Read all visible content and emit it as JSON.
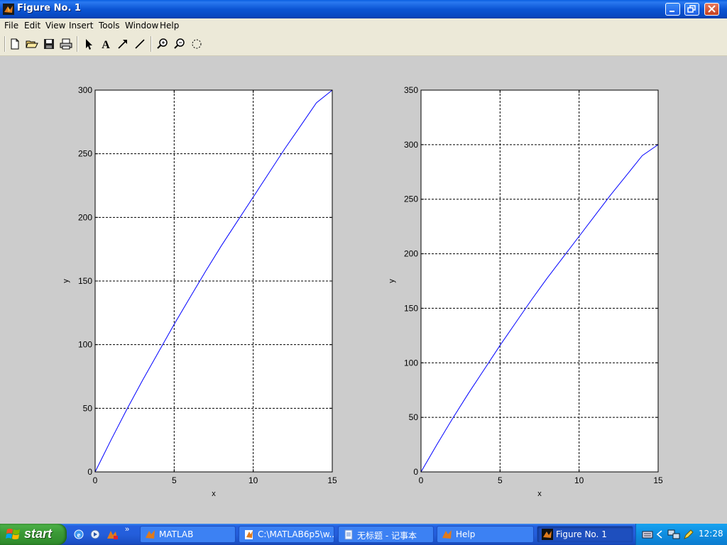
{
  "window": {
    "title": "Figure No. 1",
    "buttons": [
      "minimize-icon",
      "restore-icon",
      "close-icon"
    ]
  },
  "menu": [
    "File",
    "Edit",
    "View",
    "Insert",
    "Tools",
    "Window",
    "Help"
  ],
  "toolbar": [
    "new-file-icon",
    "open-folder-icon",
    "save-icon",
    "print-icon",
    "select-arrow-icon",
    "insert-text-icon",
    "insert-arrow-icon",
    "insert-line-icon",
    "zoom-in-icon",
    "zoom-out-icon",
    "rotate-3d-icon"
  ],
  "chart_data": [
    {
      "type": "line",
      "xlabel": "x",
      "ylabel": "y",
      "xlim": [
        0,
        15
      ],
      "ylim": [
        0,
        300
      ],
      "xticks": [
        "0",
        "5",
        "10",
        "15"
      ],
      "yticks": [
        "0",
        "50",
        "100",
        "150",
        "200",
        "250",
        "300"
      ],
      "grid": true,
      "line_color": "#0000ff",
      "series": [
        {
          "x": [
            0,
            1,
            2,
            3,
            4,
            5,
            6,
            7,
            8,
            9,
            10,
            11,
            12,
            13,
            14,
            15
          ],
          "values": [
            0,
            25,
            49,
            72,
            94,
            116,
            137,
            158,
            178,
            197,
            216,
            235,
            254,
            272,
            290,
            300
          ]
        }
      ]
    },
    {
      "type": "line",
      "xlabel": "x",
      "ylabel": "y",
      "xlim": [
        0,
        15
      ],
      "ylim": [
        0,
        350
      ],
      "xticks": [
        "0",
        "5",
        "10",
        "15"
      ],
      "yticks": [
        "0",
        "50",
        "100",
        "150",
        "200",
        "250",
        "300",
        "350"
      ],
      "grid": true,
      "line_color": "#0000ff",
      "series": [
        {
          "x": [
            0,
            1,
            2,
            3,
            4,
            5,
            6,
            7,
            8,
            9,
            10,
            11,
            12,
            13,
            14,
            15
          ],
          "values": [
            0,
            25,
            49,
            72,
            94,
            116,
            137,
            158,
            178,
            197,
            216,
            235,
            254,
            272,
            290,
            300
          ]
        }
      ]
    }
  ],
  "taskbar": {
    "start_label": "start",
    "quicklaunch": [
      "ie-icon",
      "media-player-icon",
      "outlook-icon"
    ],
    "buttons": [
      {
        "label": "MATLAB",
        "icon": "matlab-icon",
        "active": false
      },
      {
        "label": "C:\\MATLAB6p5\\w...",
        "icon": "matlab-editor-icon",
        "active": false
      },
      {
        "label": "无标题 - 记事本",
        "icon": "notepad-icon",
        "active": false
      },
      {
        "label": "Help",
        "icon": "matlab-help-icon",
        "active": false
      },
      {
        "label": "Figure No. 1",
        "icon": "matlab-figure-icon",
        "active": true
      }
    ],
    "tray": {
      "clock": "12:28"
    }
  }
}
